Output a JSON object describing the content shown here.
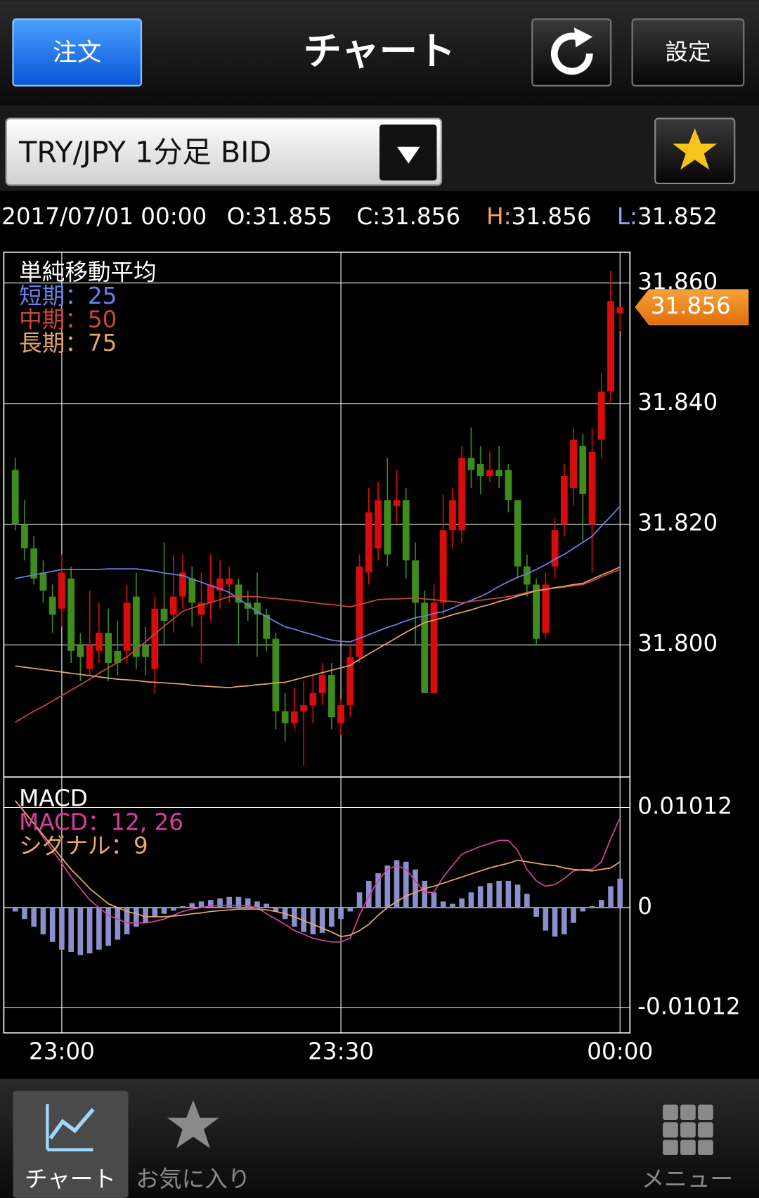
{
  "header": {
    "order_button": "注文",
    "title": "チャート",
    "settings_button": "設定"
  },
  "symbol_selector": "TRY/JPY 1分足 BID",
  "quote": {
    "datetime": "2017/07/01 00:00",
    "items": [
      {
        "key": "O:",
        "value": 31.855,
        "color": "#ffffff"
      },
      {
        "key": "C:",
        "value": 31.856,
        "color": "#ffffff"
      },
      {
        "key": "H:",
        "value": 31.856,
        "color": "#f2a46e"
      },
      {
        "key": "L:",
        "value": 31.852,
        "color": "#8ea2ff"
      }
    ]
  },
  "chart_data": [
    {
      "type": "candlestick",
      "title": "単純移動平均",
      "up_color": "#d80c0c",
      "down_color": "#3e8c1e",
      "last_price": 31.856,
      "last_price_color": "#f08a1c",
      "ylim": [
        31.7781,
        31.8651
      ],
      "yticks": [
        {
          "value": 31.8,
          "label": "31.800"
        },
        {
          "value": 31.82,
          "label": "31.820"
        },
        {
          "value": 31.84,
          "label": "31.840"
        },
        {
          "value": 31.86,
          "label": "31.860"
        }
      ],
      "grid": true,
      "open": [
        31.829,
        31.82,
        31.816,
        31.812,
        31.808,
        31.806,
        31.811,
        31.8,
        31.796,
        31.799,
        31.802,
        31.799,
        31.799,
        31.808,
        31.8,
        31.796,
        31.806,
        31.805,
        31.808,
        31.811,
        31.805,
        31.807,
        31.809,
        31.81,
        31.81,
        31.807,
        31.807,
        31.805,
        31.801,
        31.789,
        31.787,
        31.789,
        31.79,
        31.792,
        31.795,
        31.787,
        31.79,
        31.798,
        31.812,
        31.816,
        31.824,
        31.823,
        31.824,
        31.814,
        31.807,
        31.792,
        31.807,
        31.819,
        31.819,
        31.831,
        31.83,
        31.828,
        31.829,
        31.829,
        31.824,
        31.813,
        31.81,
        31.802,
        31.813,
        31.82,
        31.826,
        31.833,
        31.82,
        31.834,
        31.842,
        31.855
      ],
      "high": [
        31.831,
        31.824,
        31.818,
        31.814,
        31.81,
        31.815,
        31.813,
        31.802,
        31.809,
        31.807,
        31.806,
        31.804,
        31.81,
        31.812,
        31.803,
        31.808,
        31.817,
        31.815,
        31.815,
        31.813,
        31.812,
        31.815,
        31.814,
        31.813,
        31.811,
        31.809,
        31.812,
        31.806,
        31.802,
        31.792,
        31.793,
        31.794,
        31.795,
        31.797,
        31.797,
        31.791,
        31.8,
        31.815,
        31.826,
        31.827,
        31.831,
        31.829,
        31.826,
        31.817,
        31.809,
        31.81,
        31.825,
        31.826,
        31.833,
        31.836,
        31.833,
        31.832,
        31.833,
        31.83,
        31.824,
        31.815,
        31.811,
        31.812,
        31.821,
        31.83,
        31.836,
        31.835,
        31.836,
        31.845,
        31.862,
        31.856
      ],
      "low": [
        31.819,
        31.814,
        31.81,
        31.807,
        31.802,
        31.803,
        31.797,
        31.794,
        31.795,
        31.797,
        31.794,
        31.795,
        31.797,
        31.796,
        31.795,
        31.792,
        31.8,
        31.802,
        31.806,
        31.803,
        31.797,
        31.804,
        31.806,
        31.807,
        31.8,
        31.804,
        31.798,
        31.799,
        31.786,
        31.784,
        31.786,
        31.78,
        31.787,
        31.79,
        31.786,
        31.785,
        31.788,
        31.797,
        31.81,
        31.814,
        31.813,
        31.82,
        31.811,
        31.8,
        31.792,
        31.792,
        31.805,
        31.816,
        31.817,
        31.826,
        31.825,
        31.827,
        31.826,
        31.822,
        31.811,
        31.808,
        31.8,
        31.801,
        31.811,
        31.818,
        31.823,
        31.817,
        31.812,
        31.831,
        31.84,
        31.852
      ],
      "close": [
        31.82,
        31.816,
        31.811,
        31.809,
        31.805,
        31.812,
        31.799,
        31.798,
        31.8,
        31.802,
        31.797,
        31.797,
        31.807,
        31.798,
        31.798,
        31.806,
        31.804,
        31.808,
        31.812,
        31.807,
        31.807,
        31.81,
        31.811,
        31.811,
        31.807,
        31.806,
        31.805,
        31.801,
        31.789,
        31.787,
        31.789,
        31.79,
        31.792,
        31.795,
        31.788,
        31.79,
        31.798,
        31.813,
        31.822,
        31.824,
        31.815,
        31.824,
        31.814,
        31.807,
        31.792,
        31.807,
        31.819,
        31.824,
        31.831,
        31.829,
        31.828,
        31.829,
        31.828,
        31.824,
        31.813,
        31.81,
        31.801,
        31.81,
        31.819,
        31.828,
        31.834,
        31.825,
        31.832,
        31.842,
        31.857,
        31.856
      ],
      "series": [
        {
          "name": "短期：25",
          "color": "#6d7ee6",
          "values": [
            31.811,
            31.8113,
            31.8116,
            31.8119,
            31.8122,
            31.8125,
            31.8125,
            31.8125,
            31.8125,
            31.8125,
            31.8126,
            31.8126,
            31.8126,
            31.8126,
            31.8124,
            31.8122,
            31.8119,
            31.8117,
            31.8115,
            31.8109,
            31.8104,
            31.8098,
            31.8093,
            31.8087,
            31.8076,
            31.8066,
            31.8055,
            31.8047,
            31.8038,
            31.803,
            31.8026,
            31.8021,
            31.8017,
            31.8012,
            31.8008,
            31.8006,
            31.8005,
            31.8011,
            31.8017,
            31.8023,
            31.8029,
            31.8034,
            31.804,
            31.8045,
            31.8048,
            31.8052,
            31.8055,
            31.8061,
            31.8068,
            31.8074,
            31.808,
            31.8088,
            31.8097,
            31.8105,
            31.8112,
            31.8118,
            31.8125,
            31.8133,
            31.8142,
            31.815,
            31.816,
            31.817,
            31.818,
            31.8197,
            31.8213,
            31.823
          ]
        },
        {
          "name": "中期：50",
          "color": "#c8463a",
          "values": [
            31.7872,
            31.7881,
            31.789,
            31.7898,
            31.7907,
            31.7916,
            31.7925,
            31.7934,
            31.7943,
            31.7953,
            31.7962,
            31.7971,
            31.798,
            31.7993,
            31.8005,
            31.8018,
            31.8031,
            31.8043,
            31.8056,
            31.8061,
            31.8066,
            31.807,
            31.8075,
            31.808,
            31.808,
            31.808,
            31.808,
            31.8078,
            31.8077,
            31.8075,
            31.8074,
            31.8072,
            31.807,
            31.8068,
            31.8067,
            31.8065,
            31.8063,
            31.8067,
            31.8071,
            31.8075,
            31.8076,
            31.8076,
            31.8077,
            31.8078,
            31.8076,
            31.8075,
            31.8073,
            31.8072,
            31.807,
            31.8072,
            31.8074,
            31.8076,
            31.8078,
            31.808,
            31.8083,
            31.8087,
            31.809,
            31.8092,
            31.8094,
            31.8096,
            31.8098,
            31.81,
            31.8106,
            31.8113,
            31.8119,
            31.8125
          ]
        },
        {
          "name": "長期：75",
          "color": "#e0a46c",
          "values": [
            31.7965,
            31.7963,
            31.7961,
            31.7959,
            31.7957,
            31.7955,
            31.7953,
            31.7951,
            31.7949,
            31.7947,
            31.7945,
            31.7943,
            31.7942,
            31.7941,
            31.7939,
            31.7938,
            31.7937,
            31.7936,
            31.7935,
            31.7933,
            31.7932,
            31.7931,
            31.793,
            31.7929,
            31.7931,
            31.7932,
            31.7934,
            31.7935,
            31.7937,
            31.7938,
            31.7942,
            31.7946,
            31.795,
            31.7954,
            31.7958,
            31.7962,
            31.7966,
            31.7976,
            31.7985,
            31.7994,
            31.8003,
            31.8012,
            31.8021,
            31.8029,
            31.8037,
            31.8041,
            31.8045,
            31.805,
            31.8054,
            31.8058,
            31.8063,
            31.8067,
            31.8072,
            31.8076,
            31.8081,
            31.8085,
            31.809,
            31.8092,
            31.8095,
            31.8097,
            31.81,
            31.8102,
            31.8109,
            31.8116,
            31.8122,
            31.8129
          ]
        }
      ]
    },
    {
      "type": "macd",
      "title": "MACD",
      "ylim": [
        -0.01266,
        0.0132
      ],
      "yticks": [
        -0.01012,
        0,
        0.01012
      ],
      "grid": true,
      "categories": [
        null,
        null,
        null,
        null,
        null,
        "23:00",
        null,
        null,
        null,
        null,
        null,
        null,
        null,
        null,
        null,
        null,
        null,
        null,
        null,
        null,
        null,
        null,
        null,
        null,
        null,
        null,
        null,
        null,
        null,
        null,
        null,
        null,
        null,
        null,
        null,
        "23:30",
        null,
        null,
        null,
        null,
        null,
        null,
        null,
        null,
        null,
        null,
        null,
        null,
        null,
        null,
        null,
        null,
        null,
        null,
        null,
        null,
        null,
        null,
        null,
        null,
        null,
        null,
        null,
        null,
        null,
        "00:00"
      ],
      "histogram": {
        "color": "#8b90cc",
        "values": [
          -0.00039,
          -0.00116,
          -0.00193,
          -0.0027,
          -0.00347,
          -0.00425,
          -0.00448,
          -0.00479,
          -0.00463,
          -0.00425,
          -0.00386,
          -0.00324,
          -0.0027,
          -0.00193,
          -0.00154,
          -0.00093,
          -0.00062,
          -0.00031,
          0.00015,
          0.00046,
          0.00062,
          0.00077,
          0.00093,
          0.00108,
          0.00108,
          0.00093,
          0.00062,
          0.00039,
          -0.00039,
          -0.00116,
          -0.00193,
          -0.00247,
          -0.0027,
          -0.00255,
          -0.00193,
          -0.00116,
          -0.00039,
          0.00154,
          0.0027,
          0.00347,
          0.00425,
          0.00479,
          0.00463,
          0.00386,
          0.0027,
          0.00154,
          0.00062,
          0.00039,
          0.00093,
          0.00154,
          0.00216,
          0.00247,
          0.0027,
          0.0027,
          0.00232,
          0.00139,
          -0.00093,
          -0.00232,
          -0.00293,
          -0.0027,
          -0.00154,
          -0.00039,
          0.00015,
          0.00077,
          0.00216,
          0.00293
        ]
      },
      "series": [
        {
          "name": "MACD：12, 26",
          "color": "#d3409c",
          "values": [
            0.01081,
            0.00965,
            0.00849,
            0.0071,
            0.00579,
            0.00448,
            0.00309,
            0.00193,
            0.00077,
            0,
            -0.00077,
            -0.00116,
            -0.00154,
            -0.00154,
            -0.00154,
            -0.00139,
            -0.00116,
            -0.00077,
            -0.00039,
            -0.00015,
            0,
            0.00015,
            0.00023,
            0.00023,
            0.00023,
            0.00015,
            0,
            -0.00062,
            -0.00116,
            -0.0017,
            -0.00232,
            -0.0027,
            -0.00309,
            -0.00332,
            -0.00347,
            -0.00347,
            -0.00309,
            -0.00077,
            0.00116,
            0.0027,
            0.00386,
            0.00425,
            0.00386,
            0.0027,
            0.00154,
            0.00154,
            0.00309,
            0.00425,
            0.0054,
            0.00579,
            0.00618,
            0.00648,
            0.00679,
            0.00679,
            0.00579,
            0.00386,
            0.0027,
            0.00216,
            0.00232,
            0.00293,
            0.00371,
            0.00386,
            0.00386,
            0.00463,
            0.00695,
            0.00911
          ]
        },
        {
          "name": "シグナル：9",
          "color": "#e8a866",
          "values": [
            0.01081,
            0.00965,
            0.00849,
            0.00733,
            0.00618,
            0.00502,
            0.00386,
            0.00293,
            0.00193,
            0.00116,
            0.00039,
            0,
            -0.00039,
            -0.00062,
            -0.00093,
            -0.00093,
            -0.00093,
            -0.00085,
            -0.00077,
            -0.00062,
            -0.00054,
            -0.00039,
            -0.00031,
            -0.00023,
            -0.00015,
            -0.00015,
            -0.00015,
            -0.00023,
            -0.00039,
            -0.00062,
            -0.00093,
            -0.00131,
            -0.0017,
            -0.00208,
            -0.00247,
            -0.00293,
            -0.00278,
            -0.00232,
            -0.0017,
            -0.00077,
            0,
            0.00062,
            0.00116,
            0.00154,
            0.00193,
            0.00216,
            0.00247,
            0.00278,
            0.00309,
            0.0034,
            0.00371,
            0.00401,
            0.00425,
            0.00448,
            0.00479,
            0.00463,
            0.00448,
            0.00432,
            0.00425,
            0.00401,
            0.00386,
            0.00378,
            0.00371,
            0.00386,
            0.00401,
            0.00463
          ]
        }
      ]
    }
  ],
  "bottom_nav": {
    "tabs": [
      "チャート",
      "お気に入り",
      "メニュー"
    ]
  }
}
